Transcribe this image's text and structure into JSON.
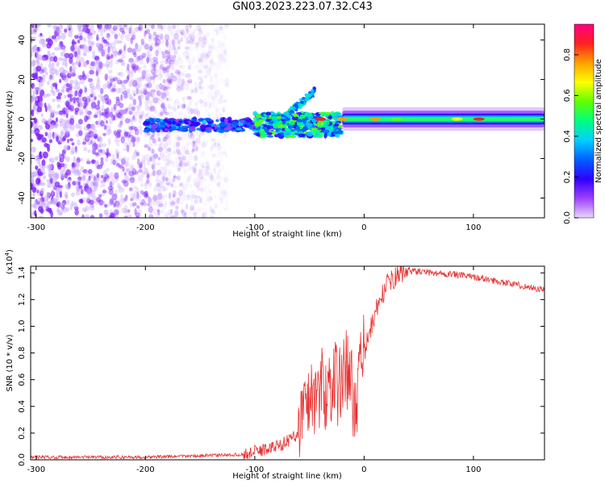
{
  "figure_title": "GN03.2023.223.07.32.C43",
  "colors": {
    "snr_line": "#e83030",
    "scatter_noise": "#8a2be2",
    "colormap": [
      "#e8d8ff",
      "#a040ff",
      "#3000ff",
      "#0060ff",
      "#00d0ff",
      "#00ff80",
      "#60ff00",
      "#ffff00",
      "#ffa000",
      "#ff2020",
      "#ff0080"
    ]
  },
  "chart_data": [
    {
      "type": "heatmap",
      "title": "GN03.2023.223.07.32.C43",
      "xlabel": "Height of straight line (km)",
      "ylabel": "Frequency (Hz)",
      "xlim": [
        -305,
        165
      ],
      "ylim": [
        -50,
        48
      ],
      "xticks": [
        "-300",
        "-200",
        "-100",
        "0",
        "100"
      ],
      "yticks": [
        "-40",
        "-20",
        "0",
        "20",
        "40"
      ],
      "colorbar": {
        "label": "Normalized spectral amplitude",
        "range": [
          0,
          0.95
        ],
        "ticks": [
          "0.0",
          "0.2",
          "0.4",
          "0.6",
          "0.8"
        ]
      },
      "features": [
        {
          "name": "noise",
          "x_range": [
            -305,
            -125
          ],
          "y_range": [
            -50,
            48
          ],
          "amplitude": 0.15
        },
        {
          "name": "emerging signal",
          "x_range": [
            -200,
            -100
          ],
          "y_center": -3,
          "amplitude": 0.25
        },
        {
          "name": "scattered signal",
          "x_range": [
            -100,
            -20
          ],
          "y_center": -3,
          "amplitude": 0.4
        },
        {
          "name": "branch",
          "x_range": [
            -75,
            -45
          ],
          "y_range": [
            0,
            14
          ],
          "amplitude": 0.35
        },
        {
          "name": "carrier line",
          "x_range": [
            -20,
            165
          ],
          "y_center": 0,
          "amplitude": 0.6
        }
      ]
    },
    {
      "type": "line",
      "xlabel": "Height of straight line (km)",
      "ylabel": "SNR (10 * v/v)",
      "y_exponent": "(x10",
      "y_exponent_power": "4",
      "y_exponent_close": ")",
      "xlim": [
        -305,
        165
      ],
      "ylim": [
        0,
        1.45
      ],
      "xticks": [
        "-300",
        "-200",
        "-100",
        "0",
        "100"
      ],
      "yticks": [
        "0.0",
        "0.2",
        "0.4",
        "0.6",
        "0.8",
        "1.0",
        "1.2",
        "1.4"
      ],
      "series": [
        {
          "x": [
            -305,
            -250,
            -200,
            -150,
            -110,
            -100,
            -90,
            -80,
            -70,
            -60,
            -55,
            -50,
            -45,
            -40,
            -35,
            -30,
            -25,
            -20,
            -15,
            -10,
            -5,
            0,
            5,
            10,
            20,
            30,
            40,
            50,
            60,
            80,
            100,
            120,
            140,
            165
          ],
          "y": [
            0.02,
            0.02,
            0.02,
            0.03,
            0.04,
            0.06,
            0.08,
            0.1,
            0.14,
            0.2,
            0.35,
            0.5,
            0.45,
            0.55,
            0.5,
            0.6,
            0.55,
            0.62,
            0.7,
            0.45,
            0.55,
            0.8,
            0.95,
            1.1,
            1.3,
            1.38,
            1.42,
            1.41,
            1.4,
            1.39,
            1.37,
            1.34,
            1.31,
            1.27
          ]
        }
      ]
    }
  ]
}
